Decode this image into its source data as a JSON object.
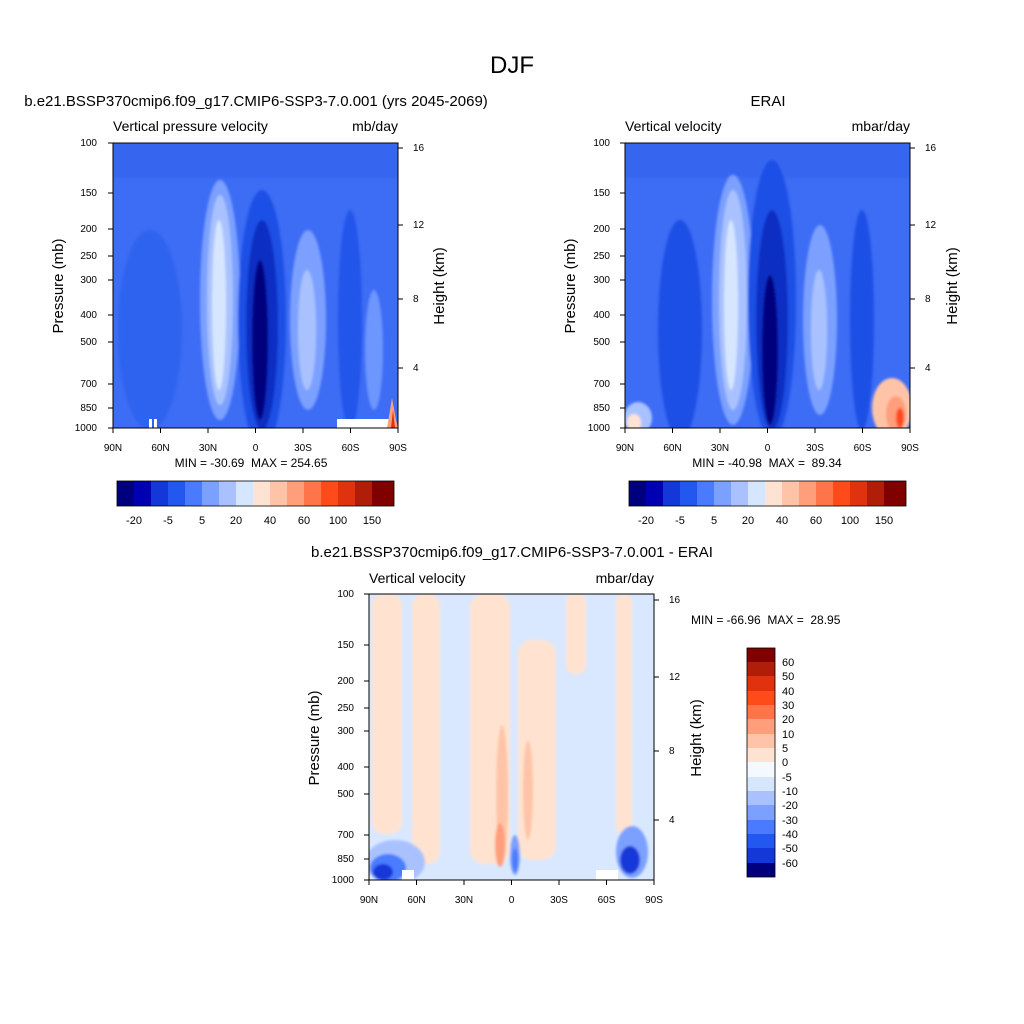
{
  "figure_title": "DJF",
  "chart_data": [
    {
      "type": "heatmap",
      "title": "b.e21.BSSP370cmip6.f09_g17.CMIP6-SSP3-7.0.001 (yrs 2045-2069)",
      "left_subtitle": "Vertical pressure velocity",
      "right_subtitle": "mb/day",
      "ylabel": "Pressure (mb)",
      "ylabel_right": "Height (km)",
      "x_ticks": [
        "90N",
        "60N",
        "30N",
        "0",
        "30S",
        "60S",
        "90S"
      ],
      "y_ticks": [
        "100",
        "150",
        "200",
        "250",
        "300",
        "400",
        "500",
        "700",
        "850",
        "1000"
      ],
      "y_ticks_right": [
        "16",
        "12",
        "8",
        "4"
      ],
      "ylim": [
        1000,
        100
      ],
      "stats": "MIN = -30.69  MAX = 254.65",
      "min": -30.69,
      "max": 254.65,
      "colorbar_labels": [
        "-20",
        "-5",
        "5",
        "20",
        "40",
        "60",
        "100",
        "150"
      ]
    },
    {
      "type": "heatmap",
      "title": "ERAI",
      "left_subtitle": "Vertical velocity",
      "right_subtitle": "mbar/day",
      "ylabel": "Pressure (mb)",
      "ylabel_right": "Height (km)",
      "x_ticks": [
        "90N",
        "60N",
        "30N",
        "0",
        "30S",
        "60S",
        "90S"
      ],
      "y_ticks": [
        "100",
        "150",
        "200",
        "250",
        "300",
        "400",
        "500",
        "700",
        "850",
        "1000"
      ],
      "y_ticks_right": [
        "16",
        "12",
        "8",
        "4"
      ],
      "ylim": [
        1000,
        100
      ],
      "stats": "MIN = -40.98  MAX =  89.34",
      "min": -40.98,
      "max": 89.34,
      "colorbar_labels": [
        "-20",
        "-5",
        "5",
        "20",
        "40",
        "60",
        "100",
        "150"
      ]
    },
    {
      "type": "heatmap",
      "title": "b.e21.BSSP370cmip6.f09_g17.CMIP6-SSP3-7.0.001 - ERAI",
      "left_subtitle": "Vertical velocity",
      "right_subtitle": "mbar/day",
      "ylabel": "Pressure (mb)",
      "ylabel_right": "Height (km)",
      "x_ticks": [
        "90N",
        "60N",
        "30N",
        "0",
        "30S",
        "60S",
        "90S"
      ],
      "y_ticks": [
        "100",
        "150",
        "200",
        "250",
        "300",
        "400",
        "500",
        "700",
        "850",
        "1000"
      ],
      "y_ticks_right": [
        "16",
        "12",
        "8",
        "4"
      ],
      "ylim": [
        1000,
        100
      ],
      "stats": "MIN = -66.96  MAX =  28.95",
      "min": -66.96,
      "max": 28.95,
      "colorbar_labels": [
        "60",
        "50",
        "40",
        "30",
        "20",
        "10",
        "5",
        "0",
        "-5",
        "-10",
        "-20",
        "-30",
        "-40",
        "-50",
        "-60"
      ]
    }
  ],
  "colors": {
    "blues": [
      "#00007f",
      "#0000b3",
      "#1437d9",
      "#2258f0",
      "#4a7bff",
      "#7ca0ff",
      "#a9c2ff",
      "#d7e6ff"
    ],
    "reds": [
      "#ffe3d2",
      "#ffc4a8",
      "#ff9e7a",
      "#ff7448",
      "#ff4a1a",
      "#e0320e",
      "#b01e0a",
      "#800000"
    ],
    "field_base": "#3d6cf5",
    "diff_base": "#d9e8ff",
    "diff_pos": "#ffe3d0"
  }
}
